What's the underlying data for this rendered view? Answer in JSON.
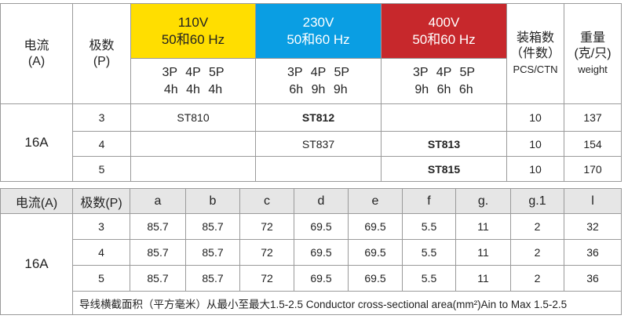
{
  "spec_table": {
    "headers": {
      "current": [
        "电流",
        "(A)"
      ],
      "poles": [
        "极数",
        "(P)"
      ],
      "voltages": [
        {
          "voltage": "110V",
          "frequency": "50和60 Hz",
          "poles": "3P 4P 5P",
          "hours": "4h 4h 4h"
        },
        {
          "voltage": "230V",
          "frequency": "50和60 Hz",
          "poles": "3P 4P 5P",
          "hours": "6h 9h 9h"
        },
        {
          "voltage": "400V",
          "frequency": "50和60 Hz",
          "poles": "3P 4P 5P",
          "hours": "9h 6h 6h"
        }
      ],
      "carton": [
        "装箱数",
        "（件数）",
        "PCS/CTN"
      ],
      "weight": [
        "重量",
        "(克/只)",
        "weight"
      ]
    },
    "current": "16A",
    "rows": [
      {
        "poles": 3,
        "models": [
          "ST810",
          "ST812",
          null
        ],
        "pcs": 10,
        "weight": 137
      },
      {
        "poles": 4,
        "models": [
          null,
          "ST837",
          "ST813"
        ],
        "pcs": 10,
        "weight": 154
      },
      {
        "poles": 5,
        "models": [
          null,
          null,
          "ST815"
        ],
        "pcs": 10,
        "weight": 170
      }
    ]
  },
  "dimension_table": {
    "headers": [
      "电流(A)",
      "极数(P)",
      "a",
      "b",
      "c",
      "d",
      "e",
      "f",
      "g.",
      "g.1",
      "l"
    ],
    "current": "16A",
    "rows": [
      [
        3,
        85.7,
        85.7,
        72,
        69.5,
        69.5,
        5.5,
        11,
        2,
        32
      ],
      [
        4,
        85.7,
        85.7,
        72,
        69.5,
        69.5,
        5.5,
        11,
        2,
        36
      ],
      [
        5,
        85.7,
        85.7,
        72,
        69.5,
        69.5,
        5.5,
        11,
        2,
        36
      ]
    ],
    "note": "导线横截面积（平方毫米）从最小至最大1.5-2.5 Conductor cross-sectional area(mm²)Ain to Max 1.5-2.5"
  }
}
